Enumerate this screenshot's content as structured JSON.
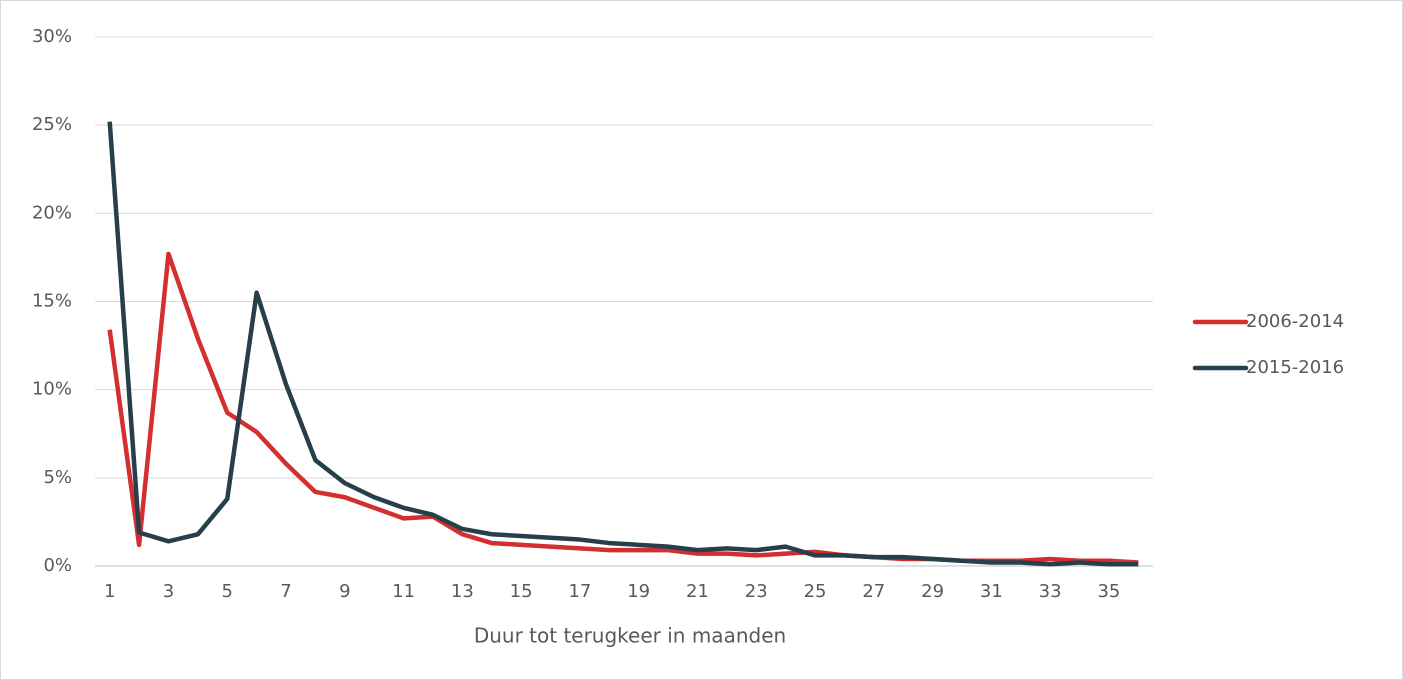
{
  "chart_data": {
    "type": "line",
    "x_label": "Duur tot terugkeer in maanden",
    "categories": [
      "1",
      null,
      "3",
      null,
      "5",
      null,
      "7",
      null,
      "9",
      null,
      "11",
      null,
      "13",
      null,
      "15",
      null,
      "17",
      null,
      "19",
      null,
      "21",
      null,
      "23",
      null,
      "25",
      null,
      "27",
      null,
      "29",
      null,
      "31",
      null,
      "33",
      null,
      "35",
      null
    ],
    "series": [
      {
        "name": "2006-2014",
        "color": "#d32f2f",
        "values": [
          13.4,
          1.2,
          17.7,
          12.9,
          8.7,
          7.6,
          5.8,
          4.2,
          3.9,
          3.3,
          2.7,
          2.8,
          1.8,
          1.3,
          1.2,
          1.1,
          1.0,
          0.9,
          0.9,
          0.9,
          0.7,
          0.7,
          0.6,
          0.7,
          0.8,
          0.6,
          0.5,
          0.4,
          0.4,
          0.3,
          0.3,
          0.3,
          0.4,
          0.3,
          0.3,
          0.2
        ]
      },
      {
        "name": "2015-2016",
        "color": "#263f4a",
        "values": [
          25.2,
          1.9,
          1.4,
          1.8,
          3.8,
          15.5,
          10.3,
          6.0,
          4.7,
          3.9,
          3.3,
          2.9,
          2.1,
          1.8,
          1.7,
          1.6,
          1.5,
          1.3,
          1.2,
          1.1,
          0.9,
          1.0,
          0.9,
          1.1,
          0.6,
          0.6,
          0.5,
          0.5,
          0.4,
          0.3,
          0.2,
          0.2,
          0.1,
          0.2,
          0.1,
          0.1
        ]
      }
    ],
    "ylim": [
      0,
      30
    ],
    "yticks": [
      {
        "value": 0,
        "label": "0%"
      },
      {
        "value": 5,
        "label": "5%"
      },
      {
        "value": 10,
        "label": "10%"
      },
      {
        "value": 15,
        "label": "15%"
      },
      {
        "value": 20,
        "label": "20%"
      },
      {
        "value": 25,
        "label": "25%"
      },
      {
        "value": 30,
        "label": "30%"
      }
    ],
    "grid": true,
    "legend": "right"
  }
}
